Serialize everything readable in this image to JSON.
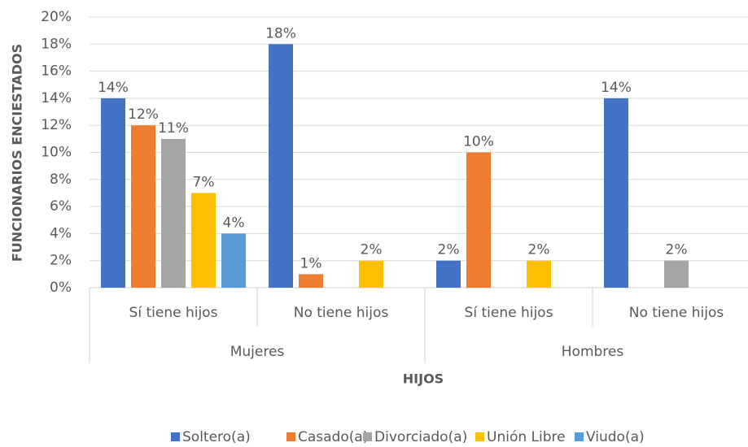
{
  "chart_data": {
    "type": "bar",
    "y_label": "FUNCIONARIOS ENCIESTADOS",
    "x_label": "HIJOS",
    "categories": [
      "Sí tiene hijos",
      "No tiene hijos",
      "Sí tiene hijos",
      "No tiene hijos"
    ],
    "groups": [
      "Mujeres",
      "Hombres"
    ],
    "series": [
      {
        "name": "Soltero(a)",
        "color": "#4472c4",
        "values": [
          14,
          18,
          2,
          14
        ],
        "value_labels": [
          "14%",
          "18%",
          "2%",
          "14%"
        ]
      },
      {
        "name": "Casado(a)",
        "color": "#ed7d31",
        "values": [
          12,
          1,
          10,
          null
        ],
        "value_labels": [
          "12%",
          "1%",
          "10%",
          null
        ]
      },
      {
        "name": "Divorciado(a)",
        "color": "#a5a5a5",
        "values": [
          11,
          null,
          null,
          2
        ],
        "value_labels": [
          "11%",
          null,
          null,
          "2%"
        ]
      },
      {
        "name": "Unión Libre",
        "color": "#ffc000",
        "values": [
          7,
          2,
          2,
          null
        ],
        "value_labels": [
          "7%",
          "2%",
          "2%",
          null
        ]
      },
      {
        "name": "Viudo(a)",
        "color": "#5b9bd5",
        "values": [
          4,
          null,
          null,
          null
        ],
        "value_labels": [
          "4%",
          null,
          null,
          null
        ]
      }
    ],
    "ylim": [
      0,
      20
    ],
    "yticks": [
      {
        "value": 0,
        "label": "0%"
      },
      {
        "value": 2,
        "label": "2%"
      },
      {
        "value": 4,
        "label": "4%"
      },
      {
        "value": 6,
        "label": "6%"
      },
      {
        "value": 8,
        "label": "8%"
      },
      {
        "value": 10,
        "label": "10%"
      },
      {
        "value": 12,
        "label": "12%"
      },
      {
        "value": 14,
        "label": "14%"
      },
      {
        "value": 16,
        "label": "16%"
      },
      {
        "value": 18,
        "label": "18%"
      },
      {
        "value": 20,
        "label": "20%"
      }
    ],
    "grid": true,
    "legend": "bottom"
  }
}
